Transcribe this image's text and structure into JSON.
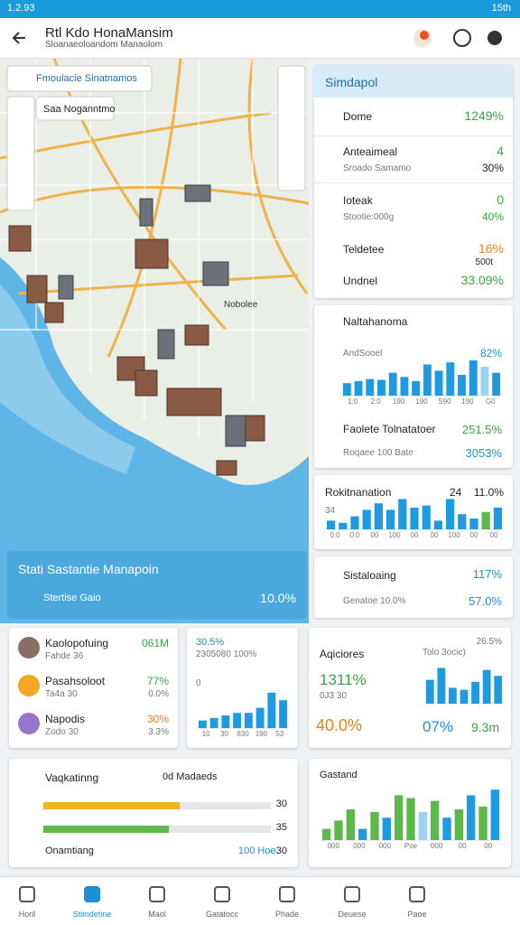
{
  "status_bar": {
    "time": "1.2.93",
    "battery": "15th"
  },
  "header": {
    "title": "Rtl Kdo HonaMansim",
    "subtitle": "Sloanaeoloandom Manaolom"
  },
  "map": {
    "search": "Fmoulacie Sinatnamos",
    "chip": "Saa Noganntmo",
    "place_label": "Nobolee",
    "card": {
      "title": "Stati Sastantie Manapoin",
      "label": "Stertise Gaio",
      "value": "10.0%"
    }
  },
  "summary": {
    "title": "Simdapol",
    "rows": [
      {
        "label": "Dome",
        "value": "1249%"
      },
      {
        "label": "Anteaimeal",
        "value": "4",
        "sub_label": "Sroado Samamo",
        "sub_value": "30%"
      },
      {
        "label": "Ioteak",
        "value": "0",
        "sub_label": "Stootie:000g",
        "sub_value": "40%"
      },
      {
        "label": "Teldetee",
        "value": "16%",
        "sub_value": "500t"
      },
      {
        "label": "Undnel",
        "value": "33.09%"
      }
    ]
  },
  "trend": {
    "title": "Naltahanoma",
    "chart_label": "AndSooel",
    "chart_value": "82%",
    "values": [
      30,
      35,
      40,
      38,
      55,
      45,
      35,
      75,
      60,
      80,
      50,
      85,
      70,
      55
    ],
    "colors": [
      "#1e9be0",
      "#1e9be0",
      "#1e9be0",
      "#1e9be0",
      "#1e9be0",
      "#1e9be0",
      "#1e9be0",
      "#1e9be0",
      "#1e9be0",
      "#1e9be0",
      "#1e9be0",
      "#1e9be0",
      "#9fd3f2",
      "#1e9be0"
    ],
    "x_labels": [
      "1:0",
      "2:0",
      "190",
      "190",
      "S90",
      "190",
      "G0"
    ],
    "rows": [
      {
        "label": "Faolete Tolnatatoer",
        "value": "251.5%"
      },
      {
        "label": "Roqaee 100 Bate",
        "value": "3053%"
      }
    ]
  },
  "activity": {
    "title": "Rokitnanation",
    "count": "24",
    "value": "11.0%",
    "y_label": "34",
    "values": [
      20,
      15,
      30,
      45,
      60,
      45,
      70,
      50,
      55,
      20,
      70,
      35,
      25,
      40,
      50
    ],
    "colors": [
      "#1e9be0",
      "#1e9be0",
      "#1e9be0",
      "#1e9be0",
      "#1e9be0",
      "#1e9be0",
      "#1e9be0",
      "#1e9be0",
      "#1e9be0",
      "#1e9be0",
      "#1e9be0",
      "#1e9be0",
      "#1e9be0",
      "#5cb84a",
      "#1e9be0"
    ],
    "x_labels": [
      "0:0",
      "0:0",
      "00",
      "100",
      "00",
      "00",
      "100",
      "00",
      "00"
    ]
  },
  "status_card": {
    "title": "Sistaloaing",
    "value": "117%",
    "label": "Genatoe 10.0%",
    "sub_value": "57.0%"
  },
  "people": [
    {
      "name": "Kaolopofuing",
      "sub": "Fahde 36",
      "value": "061M",
      "sub_value": ""
    },
    {
      "name": "Pasahsoloot",
      "sub": "Ta4a 30",
      "value": "77%",
      "sub_value": "0.0%"
    },
    {
      "name": "Napodis",
      "sub": "Zodo 30",
      "value": "30%",
      "sub_value": "3.3%"
    }
  ],
  "mini_chart": {
    "title": "30.5%",
    "subtitle": "2305080 100%",
    "y_label": "0",
    "values": [
      15,
      20,
      25,
      30,
      30,
      40,
      70,
      55
    ],
    "colors": [
      "#1e9be0",
      "#1e9be0",
      "#1e9be0",
      "#1e9be0",
      "#1e9be0",
      "#1e9be0",
      "#1e9be0",
      "#1e9be0"
    ],
    "x_labels": [
      "10",
      "30",
      "830",
      "190",
      "53"
    ]
  },
  "aggregates": {
    "title": "Aqiciores",
    "chart_title": "Tolo 3ocic)",
    "value_a": "1311%",
    "sub_a": "0J3 30",
    "value_b": "40.0%",
    "value_c": "07%",
    "value_d": "9.3m",
    "corner": "26.5%",
    "values": [
      60,
      90,
      40,
      35,
      55,
      85,
      70
    ],
    "colors": [
      "#1e9be0",
      "#1e9be0",
      "#1e9be0",
      "#1e9be0",
      "#1e9be0",
      "#1e9be0",
      "#1e9be0"
    ]
  },
  "progress": {
    "title": "Vaqkatinng",
    "meta": "0d Madaeds",
    "bars": [
      {
        "percent": 60,
        "value": "30"
      },
      {
        "percent": 55,
        "value": "35"
      }
    ],
    "footer": "Onamtiang",
    "footer_meta": "100 Hoe",
    "footer_value": "30"
  },
  "columns": {
    "title": "Gastand",
    "values": [
      20,
      35,
      55,
      20,
      50,
      40,
      80,
      75,
      50,
      70,
      40,
      55,
      80,
      60,
      90
    ],
    "colors": [
      "#5cb84a",
      "#5cb84a",
      "#5cb84a",
      "#1e9be0",
      "#5cb84a",
      "#1e9be0",
      "#5cb84a",
      "#5cb84a",
      "#9fd3f2",
      "#5cb84a",
      "#1e9be0",
      "#5cb84a",
      "#1e9be0",
      "#5cb84a",
      "#1e9be0"
    ],
    "x_labels": [
      "000",
      "000",
      "000",
      "Poe",
      "000",
      "00",
      "00"
    ]
  },
  "nav": [
    "Horil",
    "Stimdetine",
    "Maol",
    "Gatatocc",
    "Phade",
    "Deuese",
    "Paoe"
  ]
}
